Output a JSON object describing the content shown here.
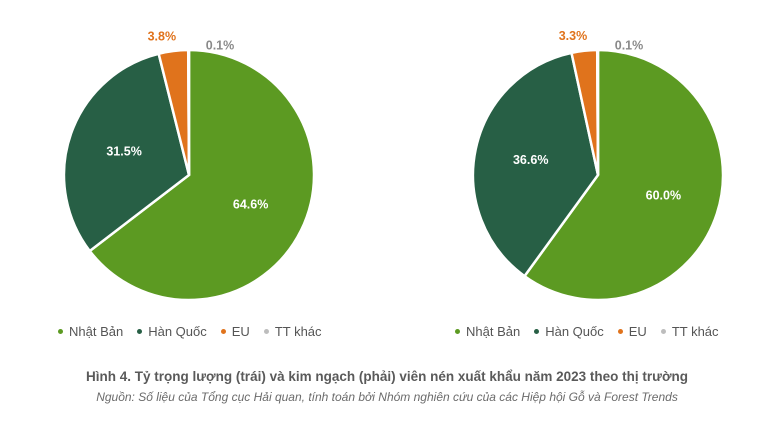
{
  "chart_data": [
    {
      "type": "pie",
      "categories": [
        "Nhật Bản",
        "Hàn Quốc",
        "EU",
        "TT khác"
      ],
      "values": [
        64.6,
        31.5,
        3.8,
        0.1
      ],
      "data_labels": [
        "64.6%",
        "31.5%",
        "3.8%",
        "0.1%"
      ],
      "colors": [
        "#5c9a22",
        "#275f45",
        "#e0731c",
        "#bdbdbd"
      ],
      "legend_position": "bottom-left"
    },
    {
      "type": "pie",
      "categories": [
        "Nhật Bản",
        "Hàn Quốc",
        "EU",
        "TT khác"
      ],
      "values": [
        60.0,
        36.6,
        3.3,
        0.1
      ],
      "data_labels": [
        "60.0%",
        "36.6%",
        "3.3%",
        "0.1%"
      ],
      "colors": [
        "#5c9a22",
        "#275f45",
        "#e0731c",
        "#bdbdbd"
      ],
      "legend_position": "bottom-right"
    }
  ],
  "legend": {
    "items": [
      {
        "label": "Nhật Bản",
        "color": "#5c9a22"
      },
      {
        "label": "Hàn Quốc",
        "color": "#275f45"
      },
      {
        "label": "EU",
        "color": "#e0731c"
      },
      {
        "label": "TT khác",
        "color": "#bdbdbd"
      }
    ]
  },
  "caption": {
    "title": "Hình 4. Tỷ trọng lượng (trái) và kim ngạch (phải) viên nén xuất khẩu năm 2023 theo thị trường",
    "source": "Nguồn: Số liệu của Tổng cục Hải quan, tính toán bởi Nhóm nghiên cứu của các Hiệp hội Gỗ và Forest Trends"
  }
}
